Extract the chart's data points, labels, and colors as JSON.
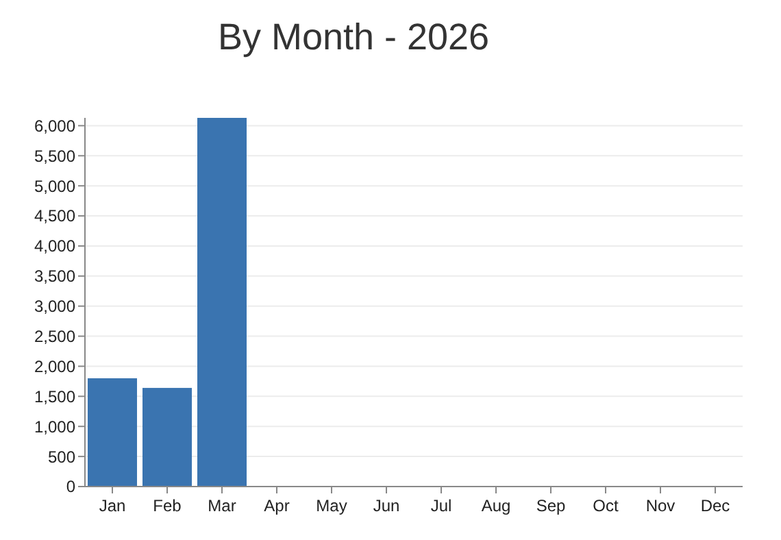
{
  "chart_data": {
    "type": "bar",
    "title": "By Month - 2026",
    "categories": [
      "Jan",
      "Feb",
      "Mar",
      "Apr",
      "May",
      "Jun",
      "Jul",
      "Aug",
      "Sep",
      "Oct",
      "Nov",
      "Dec"
    ],
    "values": [
      1800,
      1640,
      6130,
      0,
      0,
      0,
      0,
      0,
      0,
      0,
      0,
      0
    ],
    "color": "#3a74b0",
    "ylim": [
      0,
      6130
    ],
    "yticks": [
      {
        "value": 0,
        "label": "0"
      },
      {
        "value": 500,
        "label": "500"
      },
      {
        "value": 1000,
        "label": "1,000"
      },
      {
        "value": 1500,
        "label": "1,500"
      },
      {
        "value": 2000,
        "label": "2,000"
      },
      {
        "value": 2500,
        "label": "2,500"
      },
      {
        "value": 3000,
        "label": "3,000"
      },
      {
        "value": 3500,
        "label": "3,500"
      },
      {
        "value": 4000,
        "label": "4,000"
      },
      {
        "value": 4500,
        "label": "4,500"
      },
      {
        "value": 5000,
        "label": "5,000"
      },
      {
        "value": 5500,
        "label": "5,500"
      },
      {
        "value": 6000,
        "label": "6,000"
      }
    ],
    "grid": "y"
  }
}
